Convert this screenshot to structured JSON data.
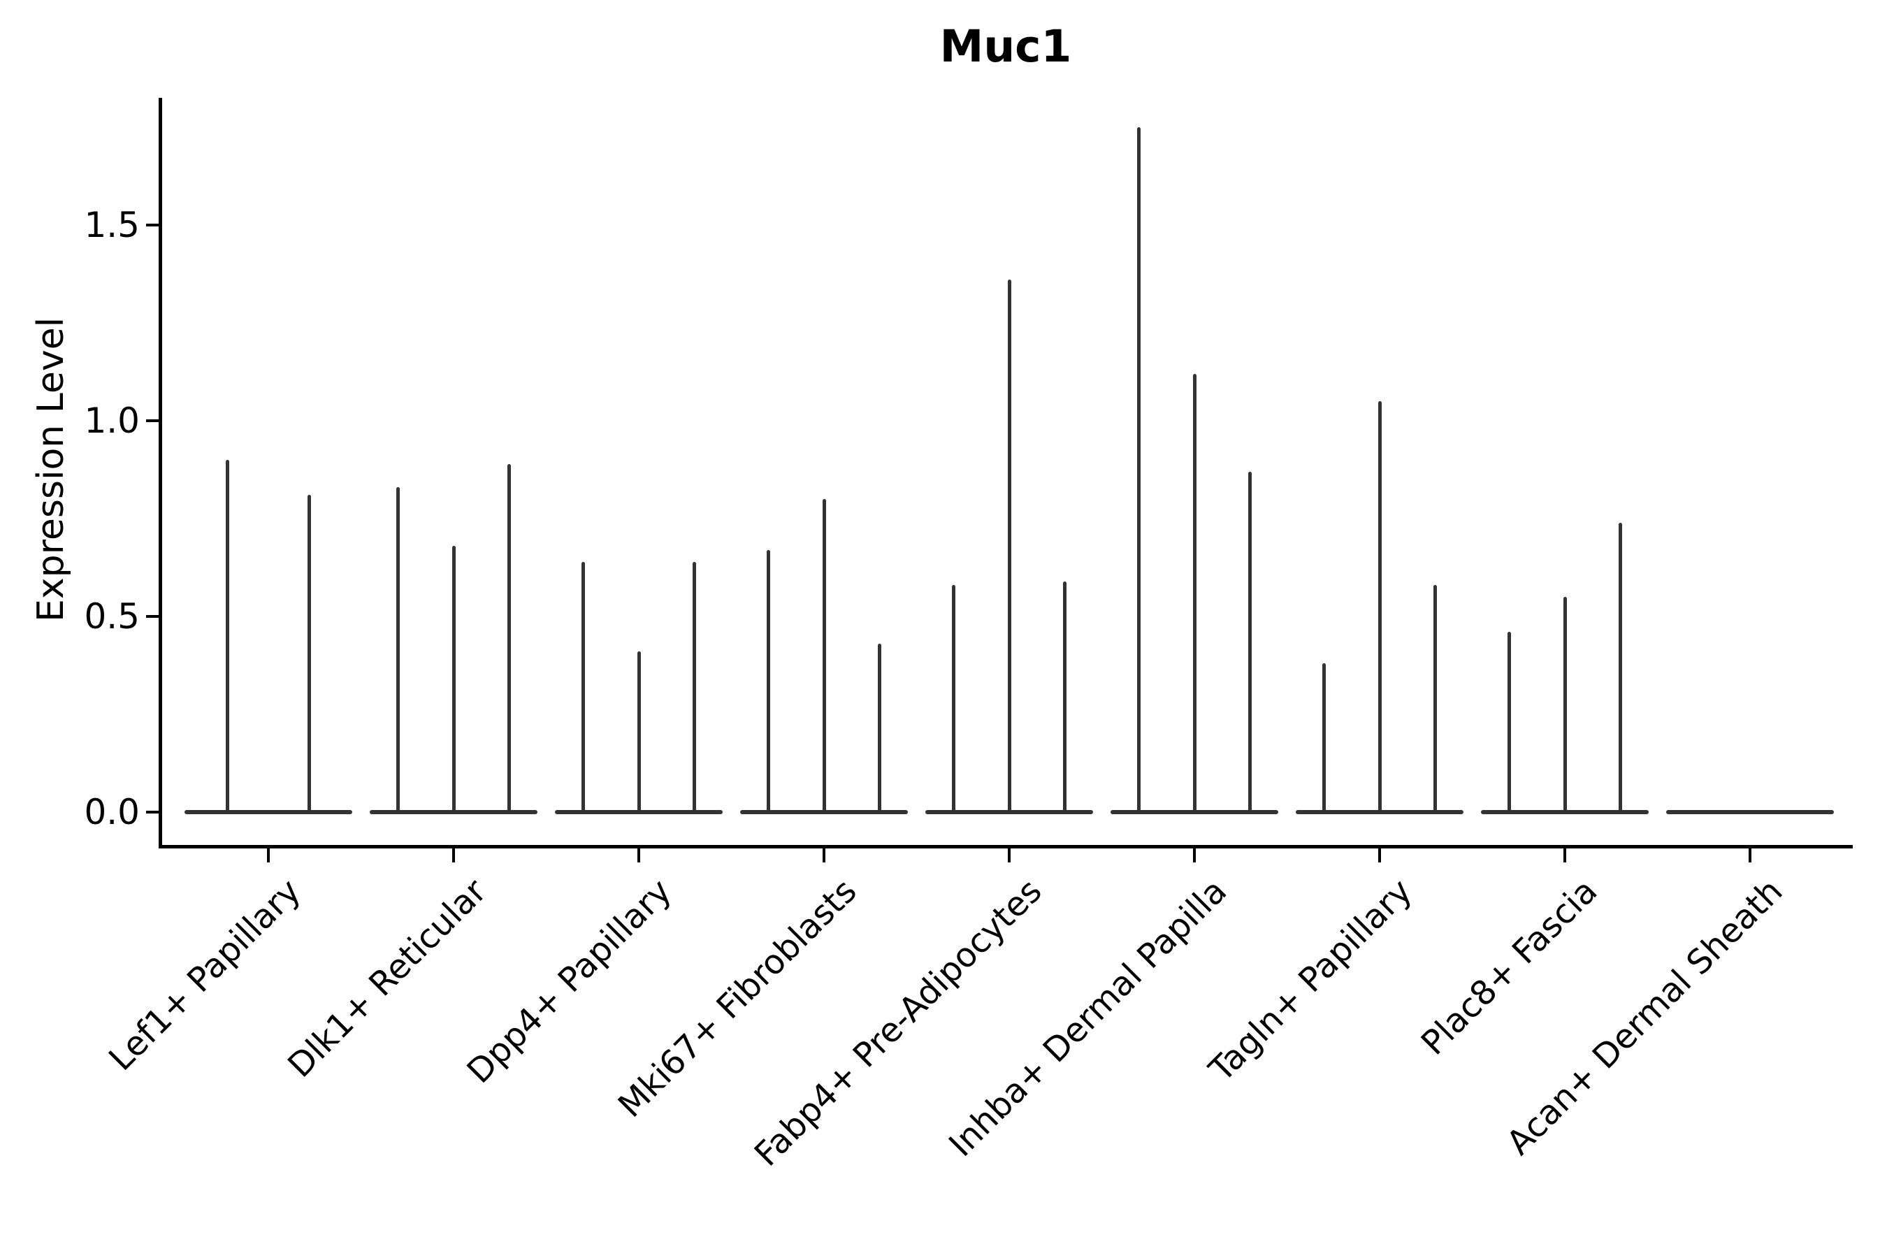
{
  "chart_data": {
    "type": "violin",
    "title": "Muc1",
    "ylabel": "Expression Level",
    "xlabel": "",
    "grid": false,
    "legend": "none",
    "violin_color": "#333333",
    "axis_color": "#000000",
    "ylim": [
      -0.085,
      1.825
    ],
    "ytick_labels": [
      "0.0",
      "0.5",
      "1.0",
      "1.5"
    ],
    "ytick_values": [
      0.0,
      0.5,
      1.0,
      1.5
    ],
    "categories": [
      "Lef1+ Papillary",
      "Dlk1+ Reticular",
      "Dpp4+ Papillary",
      "Mki67+ Fibroblasts",
      "Fabp4+ Pre-Adipocytes",
      "Inhba+ Dermal Papilla",
      "Tagln+ Papillary",
      "Plac8+ Fascia",
      "Acan+ Dermal Sheath"
    ],
    "groups": [
      {
        "category": "Lef1+ Papillary",
        "spike_max_values": [
          0.9,
          0.81
        ]
      },
      {
        "category": "Dlk1+ Reticular",
        "spike_max_values": [
          0.83,
          0.68,
          0.89
        ]
      },
      {
        "category": "Dpp4+ Papillary",
        "spike_max_values": [
          0.64,
          0.41,
          0.64
        ]
      },
      {
        "category": "Mki67+ Fibroblasts",
        "spike_max_values": [
          0.67,
          0.8,
          0.43
        ]
      },
      {
        "category": "Fabp4+ Pre-Adipocytes",
        "spike_max_values": [
          0.58,
          1.36,
          0.59
        ]
      },
      {
        "category": "Inhba+ Dermal Papilla",
        "spike_max_values": [
          1.75,
          1.12,
          0.87
        ]
      },
      {
        "category": "Tagln+ Papillary",
        "spike_max_values": [
          0.38,
          1.05,
          0.58
        ]
      },
      {
        "category": "Plac8+ Fascia",
        "spike_max_values": [
          0.46,
          0.55,
          0.74
        ]
      },
      {
        "category": "Acan+ Dermal Sheath",
        "spike_max_values": []
      }
    ]
  }
}
